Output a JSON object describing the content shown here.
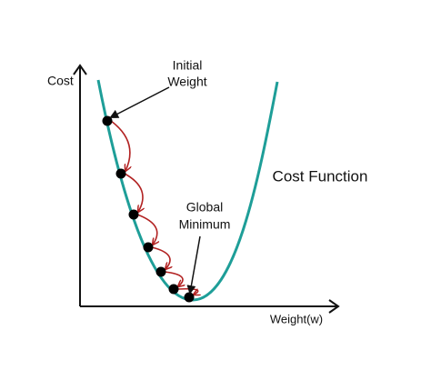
{
  "axes": {
    "y_label": "Cost",
    "x_label": "Weight(w)"
  },
  "curve_label": "Cost Function",
  "annotations": {
    "initial_weight": [
      "Initial",
      "Weight"
    ],
    "global_minimum": [
      "Global",
      "Minimum"
    ]
  }
}
